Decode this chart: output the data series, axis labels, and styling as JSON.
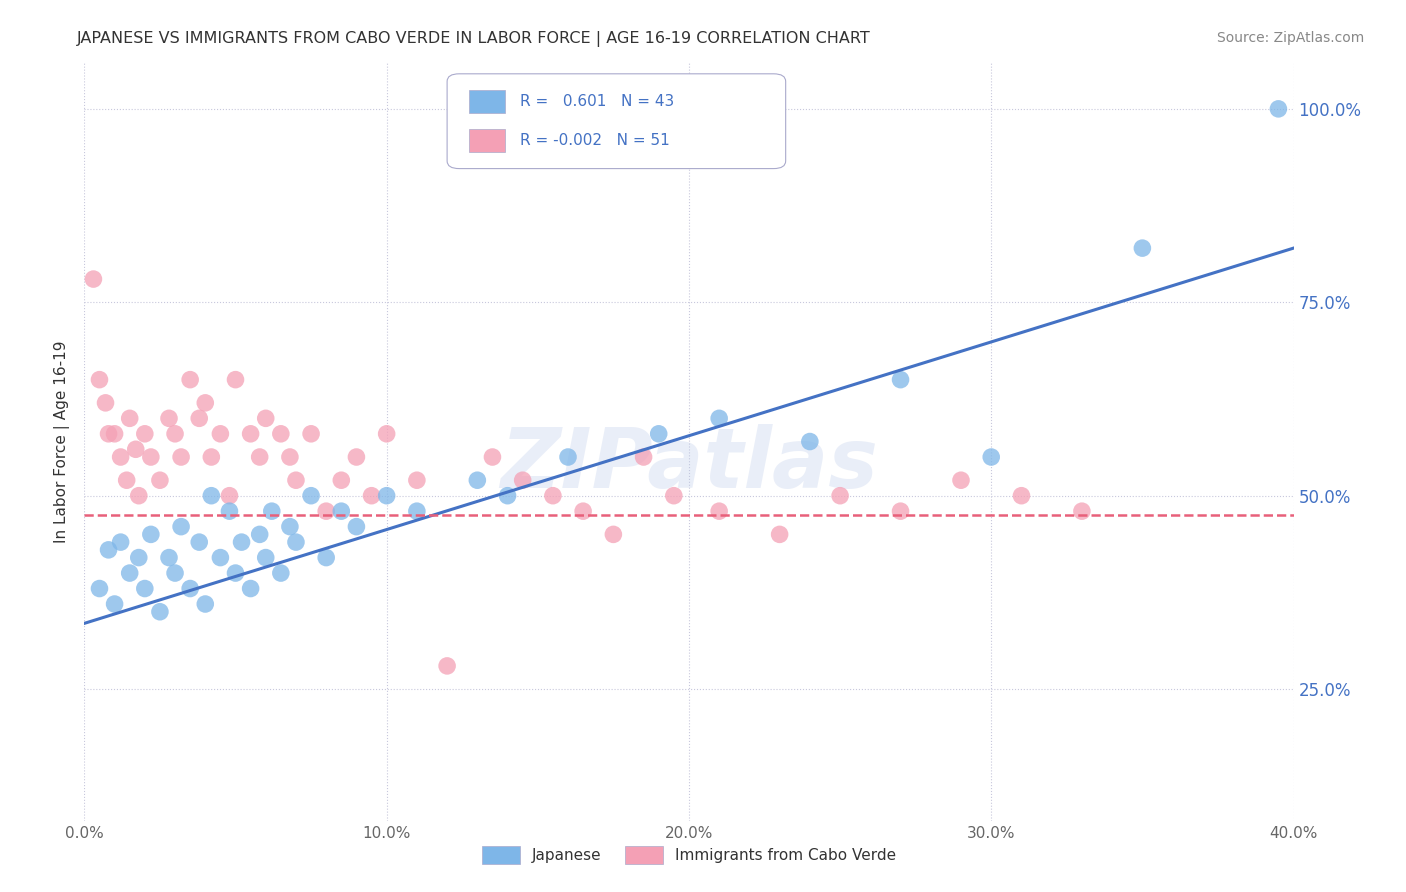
{
  "title": "JAPANESE VS IMMIGRANTS FROM CABO VERDE IN LABOR FORCE | AGE 16-19 CORRELATION CHART",
  "source": "Source: ZipAtlas.com",
  "ylabel": "In Labor Force | Age 16-19",
  "x_min": 0.0,
  "x_max": 0.4,
  "y_min": 0.08,
  "y_max": 1.06,
  "yticks": [
    0.25,
    0.5,
    0.75,
    1.0
  ],
  "ytick_labels": [
    "25.0%",
    "50.0%",
    "75.0%",
    "100.0%"
  ],
  "xticks": [
    0.0,
    0.1,
    0.2,
    0.3,
    0.4
  ],
  "xtick_labels": [
    "0.0%",
    "10.0%",
    "20.0%",
    "30.0%",
    "40.0%"
  ],
  "blue_R": 0.601,
  "blue_N": 43,
  "pink_R": -0.002,
  "pink_N": 51,
  "blue_color": "#7EB6E8",
  "pink_color": "#F4A0B5",
  "blue_line_color": "#4472C4",
  "pink_line_color": "#E8607A",
  "label_color": "#4472C4",
  "background_color": "#FFFFFF",
  "grid_color": "#C8C8DC",
  "watermark": "ZIPatlas",
  "legend_label_blue": "Japanese",
  "legend_label_pink": "Immigrants from Cabo Verde",
  "blue_scatter_x": [
    0.005,
    0.008,
    0.01,
    0.012,
    0.015,
    0.018,
    0.02,
    0.022,
    0.025,
    0.028,
    0.03,
    0.032,
    0.035,
    0.038,
    0.04,
    0.042,
    0.045,
    0.048,
    0.05,
    0.052,
    0.055,
    0.058,
    0.06,
    0.062,
    0.065,
    0.068,
    0.07,
    0.075,
    0.08,
    0.085,
    0.09,
    0.1,
    0.11,
    0.13,
    0.14,
    0.16,
    0.19,
    0.21,
    0.24,
    0.27,
    0.3,
    0.35,
    0.395
  ],
  "blue_scatter_y": [
    0.38,
    0.43,
    0.36,
    0.44,
    0.4,
    0.42,
    0.38,
    0.45,
    0.35,
    0.42,
    0.4,
    0.46,
    0.38,
    0.44,
    0.36,
    0.5,
    0.42,
    0.48,
    0.4,
    0.44,
    0.38,
    0.45,
    0.42,
    0.48,
    0.4,
    0.46,
    0.44,
    0.5,
    0.42,
    0.48,
    0.46,
    0.5,
    0.48,
    0.52,
    0.5,
    0.55,
    0.58,
    0.6,
    0.57,
    0.65,
    0.55,
    0.82,
    1.0
  ],
  "pink_scatter_x": [
    0.003,
    0.005,
    0.007,
    0.008,
    0.01,
    0.012,
    0.014,
    0.015,
    0.017,
    0.018,
    0.02,
    0.022,
    0.025,
    0.028,
    0.03,
    0.032,
    0.035,
    0.038,
    0.04,
    0.042,
    0.045,
    0.048,
    0.05,
    0.055,
    0.058,
    0.06,
    0.065,
    0.068,
    0.07,
    0.075,
    0.08,
    0.085,
    0.09,
    0.095,
    0.1,
    0.11,
    0.12,
    0.135,
    0.145,
    0.155,
    0.165,
    0.175,
    0.185,
    0.195,
    0.21,
    0.23,
    0.25,
    0.27,
    0.29,
    0.31,
    0.33
  ],
  "pink_scatter_y": [
    0.78,
    0.65,
    0.62,
    0.58,
    0.58,
    0.55,
    0.52,
    0.6,
    0.56,
    0.5,
    0.58,
    0.55,
    0.52,
    0.6,
    0.58,
    0.55,
    0.65,
    0.6,
    0.62,
    0.55,
    0.58,
    0.5,
    0.65,
    0.58,
    0.55,
    0.6,
    0.58,
    0.55,
    0.52,
    0.58,
    0.48,
    0.52,
    0.55,
    0.5,
    0.58,
    0.52,
    0.28,
    0.55,
    0.52,
    0.5,
    0.48,
    0.45,
    0.55,
    0.5,
    0.48,
    0.45,
    0.5,
    0.48,
    0.52,
    0.5,
    0.48
  ],
  "blue_trend_x": [
    0.0,
    0.4
  ],
  "blue_trend_y": [
    0.335,
    0.82
  ],
  "pink_trend_y": [
    0.475,
    0.475
  ]
}
